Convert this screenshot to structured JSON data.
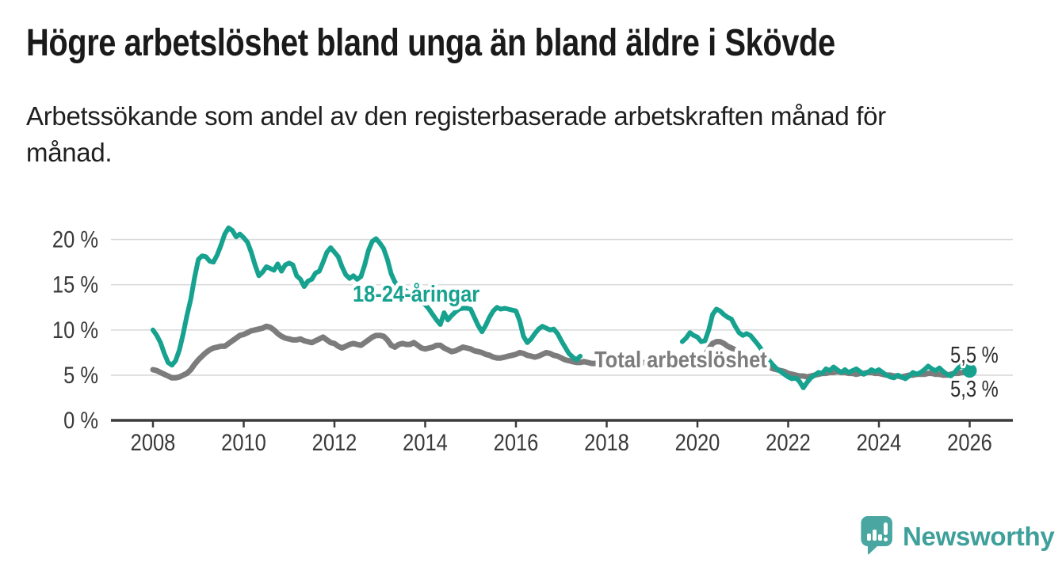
{
  "header": {
    "title": "Högre arbetslöshet bland unga än bland äldre i Skövde",
    "subtitle": "Arbetssökande som andel av den registerbaserade arbetskraften månad för månad."
  },
  "chart": {
    "y_tick_labels": [
      "0 %",
      "5 %",
      "10 %",
      "15 %",
      "20 %"
    ],
    "x_tick_labels": [
      "2008",
      "2010",
      "2012",
      "2014",
      "2016",
      "2018",
      "2020",
      "2022",
      "2024",
      "2026"
    ],
    "series_label_youth": "18-24-åringar",
    "series_label_total": "Total arbetslöshet",
    "end_label_youth": "5,5 %",
    "end_label_total": "5,3 %",
    "colors": {
      "youth": "#17a28f",
      "total": "#7c7c7c",
      "grid": "#dadada",
      "axis": "#3b3b3b",
      "tick_text": "#3a3a3a",
      "end_label_text": "#2d2d2d"
    }
  },
  "chart_data": {
    "type": "line",
    "title": "Högre arbetslöshet bland unga än bland äldre i Skövde",
    "subtitle": "Arbetssökande som andel av den registerbaserade arbetskraften månad för månad.",
    "x_unit": "month",
    "x_start_year": 2008,
    "x_end_year": 2026,
    "xlim": [
      2007.1,
      2026.95
    ],
    "ylim": [
      0,
      22
    ],
    "y_tick_values": [
      0,
      5,
      10,
      15,
      20
    ],
    "x_tick_values": [
      2008,
      2010,
      2012,
      2014,
      2016,
      2018,
      2020,
      2022,
      2024,
      2026
    ],
    "grid": true,
    "legend_position": "inline-labels",
    "series": [
      {
        "name": "18-24-åringar",
        "color": "#17a28f",
        "end_value_label": "5,5 %",
        "values": [
          10.0,
          9.4,
          8.6,
          7.4,
          6.4,
          6.1,
          6.6,
          7.8,
          9.6,
          11.6,
          13.4,
          15.8,
          17.8,
          18.2,
          18.1,
          17.6,
          17.5,
          18.3,
          19.4,
          20.6,
          21.3,
          21.0,
          20.3,
          20.6,
          20.2,
          19.7,
          18.6,
          17.2,
          16.0,
          16.4,
          17.0,
          16.8,
          16.6,
          17.3,
          16.5,
          17.2,
          17.4,
          17.2,
          16.0,
          15.6,
          14.8,
          15.4,
          15.6,
          16.3,
          16.5,
          17.5,
          18.6,
          19.1,
          18.6,
          18.1,
          17.0,
          16.1,
          15.7,
          16.0,
          15.6,
          15.9,
          17.2,
          18.8,
          19.8,
          20.1,
          19.6,
          19.0,
          17.8,
          16.2,
          15.3,
          14.8,
          14.6,
          14.3,
          14.0,
          13.7,
          13.4,
          13.1,
          12.8,
          12.3,
          11.7,
          11.1,
          10.6,
          11.9,
          11.1,
          11.6,
          12.0,
          12.3,
          12.4,
          12.4,
          12.3,
          11.4,
          10.5,
          9.8,
          10.5,
          11.4,
          12.1,
          12.5,
          12.3,
          12.4,
          12.3,
          12.2,
          12.1,
          11.0,
          9.3,
          8.6,
          9.0,
          9.6,
          10.1,
          10.4,
          10.2,
          10.0,
          10.1,
          9.6,
          8.8,
          8.1,
          7.4,
          7.0,
          6.7,
          7.1,
          null,
          null,
          null,
          null,
          null,
          null,
          null,
          null,
          null,
          null,
          null,
          null,
          null,
          null,
          null,
          null,
          null,
          null,
          null,
          null,
          null,
          null,
          null,
          null,
          null,
          null,
          8.7,
          9.1,
          9.7,
          9.4,
          9.2,
          8.7,
          8.8,
          10.0,
          11.7,
          12.3,
          12.1,
          11.7,
          11.4,
          11.2,
          10.4,
          9.7,
          9.4,
          9.6,
          9.4,
          8.9,
          8.4,
          7.8,
          7.2,
          6.6,
          6.1,
          5.7,
          5.4,
          5.1,
          4.8,
          4.6,
          4.7,
          4.3,
          3.6,
          4.2,
          4.7,
          5.0,
          5.3,
          5.2,
          5.7,
          5.5,
          5.9,
          5.6,
          5.3,
          5.6,
          5.3,
          5.5,
          5.7,
          5.4,
          5.1,
          5.3,
          5.6,
          5.4,
          5.6,
          5.3,
          5.0,
          4.8,
          4.7,
          5.0,
          4.8,
          4.6,
          4.9,
          5.3,
          5.1,
          5.3,
          5.6,
          6.0,
          5.7,
          5.5,
          5.8,
          5.4,
          5.1,
          4.9,
          5.3,
          5.8,
          6.1,
          5.6,
          5.5
        ]
      },
      {
        "name": "Total arbetslöshet",
        "color": "#7c7c7c",
        "end_value_label": "5,3 %",
        "values": [
          5.6,
          5.5,
          5.3,
          5.1,
          4.9,
          4.7,
          4.7,
          4.8,
          5.0,
          5.2,
          5.6,
          6.2,
          6.7,
          7.1,
          7.5,
          7.8,
          8.0,
          8.1,
          8.2,
          8.2,
          8.5,
          8.8,
          9.1,
          9.4,
          9.5,
          9.7,
          9.9,
          10.0,
          10.1,
          10.2,
          10.4,
          10.3,
          10.0,
          9.6,
          9.3,
          9.1,
          9.0,
          8.9,
          8.9,
          9.0,
          8.8,
          8.7,
          8.6,
          8.8,
          9.0,
          9.2,
          8.9,
          8.6,
          8.5,
          8.2,
          8.0,
          8.2,
          8.4,
          8.5,
          8.4,
          8.3,
          8.6,
          8.9,
          9.2,
          9.4,
          9.4,
          9.3,
          8.9,
          8.3,
          8.1,
          8.4,
          8.5,
          8.4,
          8.4,
          8.6,
          8.3,
          8.0,
          7.9,
          8.0,
          8.1,
          8.3,
          8.3,
          8.0,
          7.8,
          7.6,
          7.7,
          7.9,
          8.1,
          8.0,
          7.9,
          7.7,
          7.6,
          7.5,
          7.3,
          7.2,
          7.0,
          6.9,
          6.9,
          7.0,
          7.1,
          7.2,
          7.3,
          7.5,
          7.4,
          7.2,
          7.1,
          7.0,
          7.1,
          7.3,
          7.5,
          7.4,
          7.2,
          7.1,
          6.9,
          6.7,
          6.6,
          6.5,
          6.4,
          6.4,
          6.5,
          6.4,
          6.3,
          6.3,
          6.3,
          6.4,
          6.3,
          6.2,
          6.2,
          6.1,
          6.1,
          6.2,
          6.3,
          6.2,
          6.2,
          6.3,
          6.4,
          6.4,
          6.4,
          6.4,
          6.5,
          6.5,
          6.5,
          6.6,
          6.6,
          6.5,
          6.6,
          6.7,
          6.7,
          6.6,
          6.6,
          6.8,
          7.2,
          7.9,
          8.5,
          8.7,
          8.7,
          8.5,
          8.2,
          8.0,
          7.8,
          7.6,
          7.4,
          7.2,
          7.0,
          6.8,
          6.6,
          6.4,
          6.1,
          5.9,
          5.7,
          5.6,
          5.5,
          5.4,
          5.2,
          5.1,
          5.0,
          4.9,
          4.9,
          4.8,
          4.9,
          5.0,
          5.1,
          5.2,
          5.2,
          5.3,
          5.3,
          5.4,
          5.3,
          5.3,
          5.2,
          5.2,
          5.1,
          5.2,
          5.2,
          5.3,
          5.3,
          5.2,
          5.2,
          5.1,
          5.0,
          5.0,
          4.9,
          4.9,
          4.8,
          4.9,
          5.0,
          5.0,
          5.1,
          5.1,
          5.1,
          5.2,
          5.2,
          5.1,
          5.1,
          5.0,
          5.0,
          5.1,
          5.2,
          5.2,
          5.3,
          5.3,
          5.3
        ]
      }
    ]
  },
  "footer": {
    "brand_label": "Newsworthy"
  }
}
